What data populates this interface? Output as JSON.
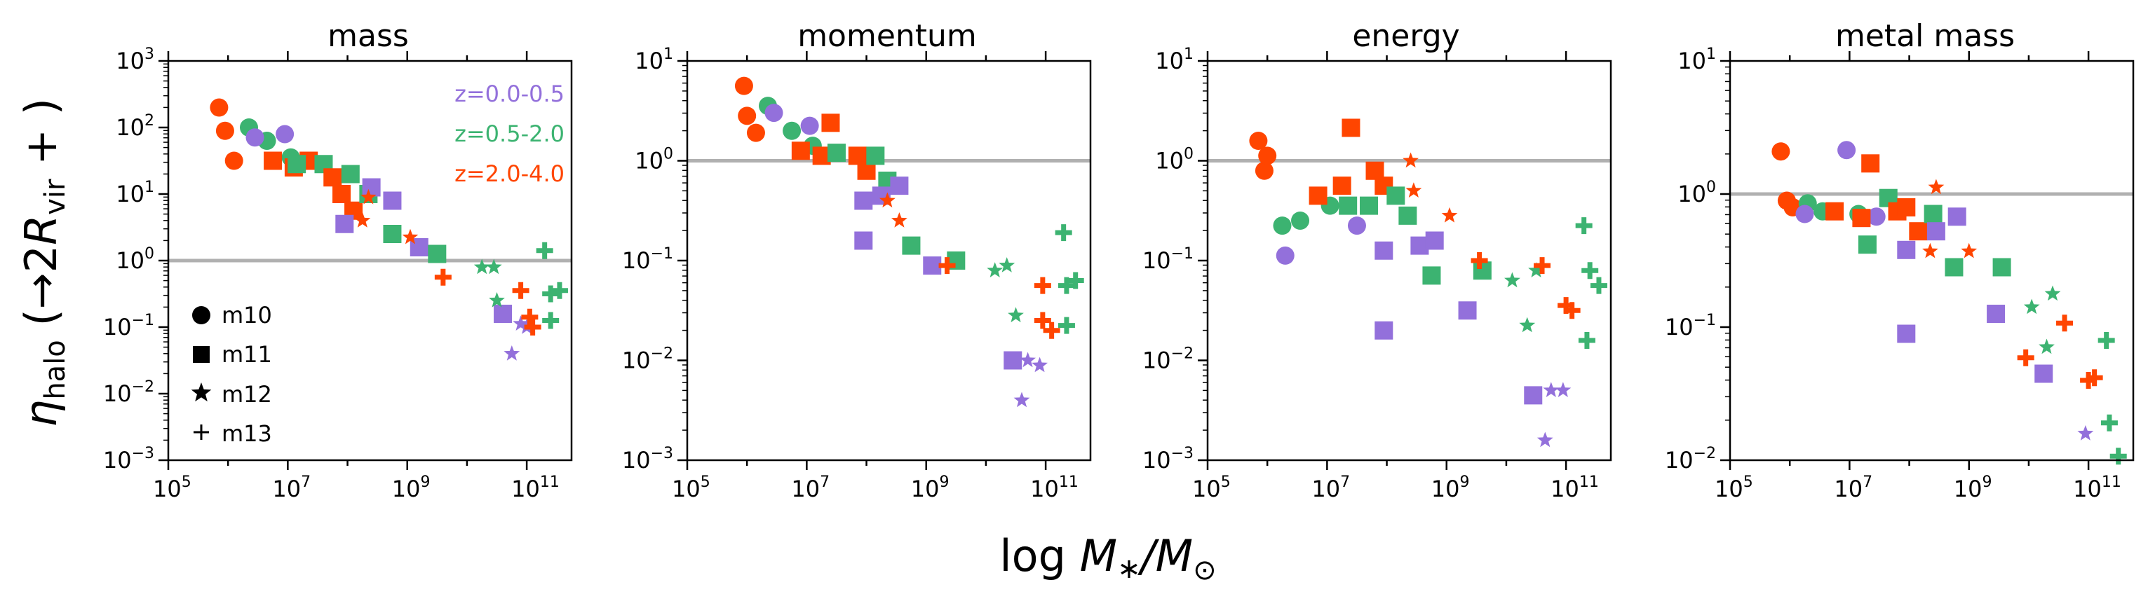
{
  "figure": {
    "xlabel": "log M*/M⊙",
    "xlabel_parts": {
      "text": "log ",
      "m": "M",
      "star": "∗",
      "slash": "/",
      "m2": "M",
      "sun": "⊙"
    },
    "ylabel_parts": {
      "eta": "η",
      "sub": "halo",
      "open": " (→2",
      "r": "R",
      "rsub": "vir",
      "close": " + )"
    }
  },
  "legend": {
    "redshift": [
      {
        "label": "z=0.0-0.5",
        "color": "#9370DB"
      },
      {
        "label": "z=0.5-2.0",
        "color": "#3CB371"
      },
      {
        "label": "z=2.0-4.0",
        "color": "#FF4500"
      }
    ],
    "markers": [
      {
        "symbol": "circle",
        "label": "m10"
      },
      {
        "symbol": "square",
        "label": "m11"
      },
      {
        "symbol": "star",
        "label": "m12"
      },
      {
        "symbol": "plus",
        "label": "m13"
      }
    ]
  },
  "chart_data": [
    {
      "type": "scatter",
      "title": "mass",
      "xscale": "log",
      "yscale": "log",
      "xlim": [
        5.0,
        11.75
      ],
      "ylim": [
        -3,
        3
      ],
      "reference_line": 1,
      "xticks": [
        "10^5",
        "10^7",
        "10^9",
        "10^11"
      ],
      "yticks": [
        "10^-3",
        "10^-2",
        "10^-1",
        "10^0",
        "10^1",
        "10^2",
        "10^3"
      ],
      "points": [
        {
          "x": 5.85,
          "y": 2.3,
          "z": 2,
          "m": "circle"
        },
        {
          "x": 5.95,
          "y": 1.95,
          "z": 2,
          "m": "circle"
        },
        {
          "x": 6.1,
          "y": 1.5,
          "z": 2,
          "m": "circle"
        },
        {
          "x": 6.35,
          "y": 2.0,
          "z": 1,
          "m": "circle"
        },
        {
          "x": 6.65,
          "y": 1.8,
          "z": 1,
          "m": "circle"
        },
        {
          "x": 6.45,
          "y": 1.85,
          "z": 0,
          "m": "circle"
        },
        {
          "x": 6.95,
          "y": 1.9,
          "z": 0,
          "m": "circle"
        },
        {
          "x": 7.05,
          "y": 1.55,
          "z": 1,
          "m": "circle"
        },
        {
          "x": 6.75,
          "y": 1.5,
          "z": 2,
          "m": "square"
        },
        {
          "x": 7.1,
          "y": 1.4,
          "z": 2,
          "m": "square"
        },
        {
          "x": 7.35,
          "y": 1.5,
          "z": 2,
          "m": "square"
        },
        {
          "x": 7.15,
          "y": 1.45,
          "z": 1,
          "m": "square"
        },
        {
          "x": 7.6,
          "y": 1.45,
          "z": 1,
          "m": "square"
        },
        {
          "x": 7.75,
          "y": 1.25,
          "z": 2,
          "m": "square"
        },
        {
          "x": 7.9,
          "y": 1.0,
          "z": 2,
          "m": "square"
        },
        {
          "x": 8.05,
          "y": 1.3,
          "z": 1,
          "m": "square"
        },
        {
          "x": 8.1,
          "y": 0.75,
          "z": 2,
          "m": "square"
        },
        {
          "x": 8.35,
          "y": 1.0,
          "z": 1,
          "m": "square"
        },
        {
          "x": 8.4,
          "y": 1.1,
          "z": 0,
          "m": "square"
        },
        {
          "x": 8.75,
          "y": 0.9,
          "z": 0,
          "m": "square"
        },
        {
          "x": 7.95,
          "y": 0.55,
          "z": 0,
          "m": "square"
        },
        {
          "x": 8.75,
          "y": 0.4,
          "z": 1,
          "m": "square"
        },
        {
          "x": 9.2,
          "y": 0.2,
          "z": 0,
          "m": "square"
        },
        {
          "x": 9.5,
          "y": 0.1,
          "z": 1,
          "m": "square"
        },
        {
          "x": 10.6,
          "y": -0.8,
          "z": 0,
          "m": "square"
        },
        {
          "x": 8.25,
          "y": 0.6,
          "z": 2,
          "m": "star"
        },
        {
          "x": 8.35,
          "y": 0.95,
          "z": 2,
          "m": "star"
        },
        {
          "x": 9.05,
          "y": 0.35,
          "z": 2,
          "m": "star"
        },
        {
          "x": 10.25,
          "y": -0.1,
          "z": 1,
          "m": "star"
        },
        {
          "x": 10.45,
          "y": -0.1,
          "z": 1,
          "m": "star"
        },
        {
          "x": 10.5,
          "y": -0.6,
          "z": 1,
          "m": "star"
        },
        {
          "x": 10.9,
          "y": -0.95,
          "z": 0,
          "m": "star"
        },
        {
          "x": 10.75,
          "y": -1.4,
          "z": 0,
          "m": "star"
        },
        {
          "x": 11.0,
          "y": -1.0,
          "z": 0,
          "m": "star"
        },
        {
          "x": 9.6,
          "y": -0.25,
          "z": 2,
          "m": "plus"
        },
        {
          "x": 10.9,
          "y": -0.45,
          "z": 2,
          "m": "plus"
        },
        {
          "x": 11.05,
          "y": -0.85,
          "z": 2,
          "m": "plus"
        },
        {
          "x": 11.1,
          "y": -1.0,
          "z": 2,
          "m": "plus"
        },
        {
          "x": 11.3,
          "y": 0.15,
          "z": 1,
          "m": "plus"
        },
        {
          "x": 11.4,
          "y": -0.5,
          "z": 1,
          "m": "plus"
        },
        {
          "x": 11.55,
          "y": -0.45,
          "z": 1,
          "m": "plus"
        },
        {
          "x": 11.4,
          "y": -0.9,
          "z": 1,
          "m": "plus"
        }
      ]
    },
    {
      "type": "scatter",
      "title": "momentum",
      "xscale": "log",
      "yscale": "log",
      "xlim": [
        5.0,
        11.75
      ],
      "ylim": [
        -3,
        1
      ],
      "reference_line": 1,
      "xticks": [
        "10^5",
        "10^7",
        "10^9",
        "10^11"
      ],
      "yticks": [
        "10^-3",
        "10^-2",
        "10^-1",
        "10^0",
        "10^1"
      ],
      "points": [
        {
          "x": 5.95,
          "y": 0.75,
          "z": 2,
          "m": "circle"
        },
        {
          "x": 6.0,
          "y": 0.45,
          "z": 2,
          "m": "circle"
        },
        {
          "x": 6.15,
          "y": 0.28,
          "z": 2,
          "m": "circle"
        },
        {
          "x": 6.35,
          "y": 0.55,
          "z": 1,
          "m": "circle"
        },
        {
          "x": 6.45,
          "y": 0.48,
          "z": 0,
          "m": "circle"
        },
        {
          "x": 6.75,
          "y": 0.3,
          "z": 1,
          "m": "circle"
        },
        {
          "x": 7.05,
          "y": 0.35,
          "z": 0,
          "m": "circle"
        },
        {
          "x": 7.1,
          "y": 0.15,
          "z": 1,
          "m": "circle"
        },
        {
          "x": 6.9,
          "y": 0.1,
          "z": 2,
          "m": "square"
        },
        {
          "x": 7.25,
          "y": 0.05,
          "z": 2,
          "m": "square"
        },
        {
          "x": 7.4,
          "y": 0.38,
          "z": 2,
          "m": "square"
        },
        {
          "x": 7.5,
          "y": 0.08,
          "z": 1,
          "m": "square"
        },
        {
          "x": 7.85,
          "y": 0.05,
          "z": 2,
          "m": "square"
        },
        {
          "x": 8.0,
          "y": -0.1,
          "z": 2,
          "m": "square"
        },
        {
          "x": 8.15,
          "y": 0.05,
          "z": 1,
          "m": "square"
        },
        {
          "x": 8.35,
          "y": -0.2,
          "z": 1,
          "m": "square"
        },
        {
          "x": 8.55,
          "y": -0.25,
          "z": 0,
          "m": "square"
        },
        {
          "x": 7.95,
          "y": -0.4,
          "z": 0,
          "m": "square"
        },
        {
          "x": 8.25,
          "y": -0.35,
          "z": 0,
          "m": "square"
        },
        {
          "x": 7.95,
          "y": -0.8,
          "z": 0,
          "m": "square"
        },
        {
          "x": 8.75,
          "y": -0.85,
          "z": 1,
          "m": "square"
        },
        {
          "x": 9.1,
          "y": -1.05,
          "z": 0,
          "m": "square"
        },
        {
          "x": 9.5,
          "y": -1.0,
          "z": 1,
          "m": "square"
        },
        {
          "x": 10.45,
          "y": -2.0,
          "z": 0,
          "m": "square"
        },
        {
          "x": 8.35,
          "y": -0.4,
          "z": 2,
          "m": "star"
        },
        {
          "x": 8.55,
          "y": -0.6,
          "z": 2,
          "m": "star"
        },
        {
          "x": 10.15,
          "y": -1.1,
          "z": 1,
          "m": "star"
        },
        {
          "x": 10.35,
          "y": -1.05,
          "z": 1,
          "m": "star"
        },
        {
          "x": 10.5,
          "y": -1.55,
          "z": 1,
          "m": "star"
        },
        {
          "x": 10.7,
          "y": -2.0,
          "z": 0,
          "m": "star"
        },
        {
          "x": 10.9,
          "y": -2.05,
          "z": 0,
          "m": "star"
        },
        {
          "x": 10.6,
          "y": -2.4,
          "z": 0,
          "m": "star"
        },
        {
          "x": 9.35,
          "y": -1.05,
          "z": 2,
          "m": "plus"
        },
        {
          "x": 10.95,
          "y": -1.25,
          "z": 2,
          "m": "plus"
        },
        {
          "x": 10.95,
          "y": -1.6,
          "z": 2,
          "m": "plus"
        },
        {
          "x": 11.1,
          "y": -1.7,
          "z": 2,
          "m": "plus"
        },
        {
          "x": 11.3,
          "y": -0.72,
          "z": 1,
          "m": "plus"
        },
        {
          "x": 11.35,
          "y": -1.25,
          "z": 1,
          "m": "plus"
        },
        {
          "x": 11.5,
          "y": -1.2,
          "z": 1,
          "m": "plus"
        },
        {
          "x": 11.35,
          "y": -1.65,
          "z": 1,
          "m": "plus"
        }
      ]
    },
    {
      "type": "scatter",
      "title": "energy",
      "xscale": "log",
      "yscale": "log",
      "xlim": [
        5.0,
        11.75
      ],
      "ylim": [
        -3,
        1
      ],
      "reference_line": 1,
      "xticks": [
        "10^5",
        "10^7",
        "10^9",
        "10^11"
      ],
      "yticks": [
        "10^-3",
        "10^-2",
        "10^-1",
        "10^0",
        "10^1"
      ],
      "points": [
        {
          "x": 5.85,
          "y": 0.2,
          "z": 2,
          "m": "circle"
        },
        {
          "x": 5.95,
          "y": -0.1,
          "z": 2,
          "m": "circle"
        },
        {
          "x": 6.0,
          "y": 0.05,
          "z": 2,
          "m": "circle"
        },
        {
          "x": 6.25,
          "y": -0.65,
          "z": 1,
          "m": "circle"
        },
        {
          "x": 6.55,
          "y": -0.6,
          "z": 1,
          "m": "circle"
        },
        {
          "x": 6.3,
          "y": -0.95,
          "z": 0,
          "m": "circle"
        },
        {
          "x": 7.05,
          "y": -0.45,
          "z": 1,
          "m": "circle"
        },
        {
          "x": 7.5,
          "y": -0.65,
          "z": 0,
          "m": "circle"
        },
        {
          "x": 6.85,
          "y": -0.35,
          "z": 2,
          "m": "square"
        },
        {
          "x": 7.25,
          "y": -0.25,
          "z": 2,
          "m": "square"
        },
        {
          "x": 7.4,
          "y": 0.33,
          "z": 2,
          "m": "square"
        },
        {
          "x": 7.35,
          "y": -0.45,
          "z": 1,
          "m": "square"
        },
        {
          "x": 7.7,
          "y": -0.45,
          "z": 1,
          "m": "square"
        },
        {
          "x": 7.8,
          "y": -0.1,
          "z": 2,
          "m": "square"
        },
        {
          "x": 7.95,
          "y": -0.25,
          "z": 2,
          "m": "square"
        },
        {
          "x": 8.15,
          "y": -0.35,
          "z": 1,
          "m": "square"
        },
        {
          "x": 8.35,
          "y": -0.55,
          "z": 1,
          "m": "square"
        },
        {
          "x": 7.95,
          "y": -0.9,
          "z": 0,
          "m": "square"
        },
        {
          "x": 8.55,
          "y": -0.85,
          "z": 0,
          "m": "square"
        },
        {
          "x": 8.8,
          "y": -0.8,
          "z": 0,
          "m": "square"
        },
        {
          "x": 8.75,
          "y": -1.15,
          "z": 1,
          "m": "square"
        },
        {
          "x": 9.35,
          "y": -1.5,
          "z": 0,
          "m": "square"
        },
        {
          "x": 9.6,
          "y": -1.1,
          "z": 1,
          "m": "square"
        },
        {
          "x": 7.95,
          "y": -1.7,
          "z": 0,
          "m": "square"
        },
        {
          "x": 10.45,
          "y": -2.35,
          "z": 0,
          "m": "square"
        },
        {
          "x": 8.45,
          "y": -0.3,
          "z": 2,
          "m": "star"
        },
        {
          "x": 8.4,
          "y": 0.0,
          "z": 2,
          "m": "star"
        },
        {
          "x": 9.05,
          "y": -0.55,
          "z": 2,
          "m": "star"
        },
        {
          "x": 10.1,
          "y": -1.2,
          "z": 1,
          "m": "star"
        },
        {
          "x": 10.35,
          "y": -1.65,
          "z": 1,
          "m": "star"
        },
        {
          "x": 10.5,
          "y": -1.1,
          "z": 1,
          "m": "star"
        },
        {
          "x": 10.75,
          "y": -2.3,
          "z": 0,
          "m": "star"
        },
        {
          "x": 10.95,
          "y": -2.3,
          "z": 0,
          "m": "star"
        },
        {
          "x": 10.65,
          "y": -2.8,
          "z": 0,
          "m": "star"
        },
        {
          "x": 9.55,
          "y": -1.0,
          "z": 2,
          "m": "plus"
        },
        {
          "x": 10.6,
          "y": -1.05,
          "z": 2,
          "m": "plus"
        },
        {
          "x": 11.0,
          "y": -1.45,
          "z": 2,
          "m": "plus"
        },
        {
          "x": 11.1,
          "y": -1.5,
          "z": 2,
          "m": "plus"
        },
        {
          "x": 11.3,
          "y": -0.65,
          "z": 1,
          "m": "plus"
        },
        {
          "x": 11.4,
          "y": -1.1,
          "z": 1,
          "m": "plus"
        },
        {
          "x": 11.55,
          "y": -1.25,
          "z": 1,
          "m": "plus"
        },
        {
          "x": 11.35,
          "y": -1.8,
          "z": 1,
          "m": "plus"
        }
      ]
    },
    {
      "type": "scatter",
      "title": "metal mass",
      "xscale": "log",
      "yscale": "log",
      "xlim": [
        5.0,
        11.75
      ],
      "ylim": [
        -2,
        1
      ],
      "reference_line": 1,
      "xticks": [
        "10^5",
        "10^7",
        "10^9",
        "10^11"
      ],
      "yticks": [
        "10^-2",
        "10^-1",
        "10^0",
        "10^1"
      ],
      "points": [
        {
          "x": 5.85,
          "y": 0.32,
          "z": 2,
          "m": "circle"
        },
        {
          "x": 5.95,
          "y": -0.05,
          "z": 2,
          "m": "circle"
        },
        {
          "x": 6.05,
          "y": -0.1,
          "z": 2,
          "m": "circle"
        },
        {
          "x": 6.3,
          "y": -0.07,
          "z": 1,
          "m": "circle"
        },
        {
          "x": 6.55,
          "y": -0.13,
          "z": 1,
          "m": "circle"
        },
        {
          "x": 6.25,
          "y": -0.15,
          "z": 0,
          "m": "circle"
        },
        {
          "x": 6.95,
          "y": 0.33,
          "z": 0,
          "m": "circle"
        },
        {
          "x": 7.15,
          "y": -0.15,
          "z": 1,
          "m": "circle"
        },
        {
          "x": 7.45,
          "y": -0.17,
          "z": 0,
          "m": "circle"
        },
        {
          "x": 6.75,
          "y": -0.13,
          "z": 2,
          "m": "square"
        },
        {
          "x": 7.2,
          "y": -0.18,
          "z": 2,
          "m": "square"
        },
        {
          "x": 7.35,
          "y": 0.23,
          "z": 2,
          "m": "square"
        },
        {
          "x": 7.3,
          "y": -0.38,
          "z": 1,
          "m": "square"
        },
        {
          "x": 7.65,
          "y": -0.03,
          "z": 1,
          "m": "square"
        },
        {
          "x": 7.8,
          "y": -0.13,
          "z": 2,
          "m": "square"
        },
        {
          "x": 7.95,
          "y": -0.1,
          "z": 2,
          "m": "square"
        },
        {
          "x": 8.15,
          "y": -0.28,
          "z": 2,
          "m": "square"
        },
        {
          "x": 8.4,
          "y": -0.15,
          "z": 1,
          "m": "square"
        },
        {
          "x": 8.45,
          "y": -0.28,
          "z": 0,
          "m": "square"
        },
        {
          "x": 8.8,
          "y": -0.17,
          "z": 0,
          "m": "square"
        },
        {
          "x": 7.95,
          "y": -0.42,
          "z": 0,
          "m": "square"
        },
        {
          "x": 8.75,
          "y": -0.55,
          "z": 1,
          "m": "square"
        },
        {
          "x": 9.45,
          "y": -0.9,
          "z": 0,
          "m": "square"
        },
        {
          "x": 9.55,
          "y": -0.55,
          "z": 1,
          "m": "square"
        },
        {
          "x": 7.95,
          "y": -1.05,
          "z": 0,
          "m": "square"
        },
        {
          "x": 10.25,
          "y": -1.35,
          "z": 0,
          "m": "square"
        },
        {
          "x": 8.35,
          "y": -0.43,
          "z": 2,
          "m": "star"
        },
        {
          "x": 8.45,
          "y": 0.05,
          "z": 2,
          "m": "star"
        },
        {
          "x": 9.0,
          "y": -0.43,
          "z": 2,
          "m": "star"
        },
        {
          "x": 10.05,
          "y": -0.85,
          "z": 1,
          "m": "star"
        },
        {
          "x": 10.3,
          "y": -1.15,
          "z": 1,
          "m": "star"
        },
        {
          "x": 10.4,
          "y": -0.75,
          "z": 1,
          "m": "star"
        },
        {
          "x": 10.95,
          "y": -1.8,
          "z": 0,
          "m": "star"
        },
        {
          "x": 9.95,
          "y": -1.23,
          "z": 2,
          "m": "plus"
        },
        {
          "x": 10.6,
          "y": -0.97,
          "z": 2,
          "m": "plus"
        },
        {
          "x": 11.0,
          "y": -1.4,
          "z": 2,
          "m": "plus"
        },
        {
          "x": 11.1,
          "y": -1.38,
          "z": 2,
          "m": "plus"
        },
        {
          "x": 11.3,
          "y": -1.1,
          "z": 1,
          "m": "plus"
        },
        {
          "x": 11.35,
          "y": -1.72,
          "z": 1,
          "m": "plus"
        },
        {
          "x": 11.5,
          "y": -1.97,
          "z": 1,
          "m": "plus"
        }
      ]
    }
  ]
}
